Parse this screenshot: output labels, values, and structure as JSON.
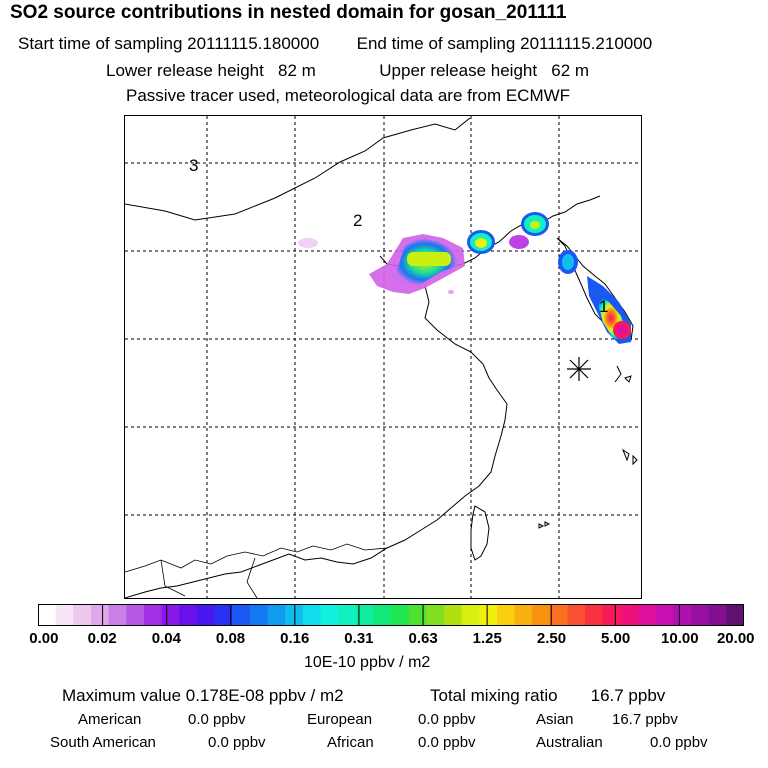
{
  "header": {
    "title": "SO2 source contributions in nested domain for gosan_201111",
    "start_label": "Start time of sampling 20111115.180000",
    "end_label": "End time of sampling 20111115.210000",
    "lower_label": "Lower release height   82 m",
    "upper_label": "Upper release height   62 m",
    "tracer_note": "Passive tracer used, meteorological data are from ECMWF"
  },
  "map": {
    "region_labels": [
      "1",
      "2",
      "3"
    ],
    "station_marker": "asterisk-station-marker"
  },
  "colorbar": {
    "ticks": [
      "0.00",
      "0.02",
      "0.04",
      "0.08",
      "0.16",
      "0.31",
      "0.63",
      "1.25",
      "2.50",
      "5.00",
      "10.00",
      "20.00"
    ],
    "unit": "10E-10 ppbv / m2",
    "colors": [
      "#ffffff",
      "#f6e6f6",
      "#ecc8ec",
      "#e0a8e8",
      "#c880e8",
      "#b65ae6",
      "#a430e6",
      "#8a18e8",
      "#6a10ea",
      "#4818f0",
      "#2a30f4",
      "#1a58f4",
      "#1478f2",
      "#109af0",
      "#10bcee",
      "#10dcec",
      "#10f0e0",
      "#10f0c0",
      "#10ec9c",
      "#10e878",
      "#20e450",
      "#50e030",
      "#80e020",
      "#b0e010",
      "#d8f010",
      "#f0f010",
      "#f8d010",
      "#f8b010",
      "#f89010",
      "#f87020",
      "#f85030",
      "#f83040",
      "#f81a58",
      "#f0107a",
      "#e0109c",
      "#c810b0",
      "#b010b0",
      "#9810a0",
      "#801090",
      "#601070"
    ]
  },
  "stats": {
    "max_value": "Maximum value  0.178E-08 ppbv / m2",
    "total_mixing": "Total mixing ratio       16.7 ppbv"
  },
  "regions": [
    {
      "name": "American",
      "value": "0.0 ppbv"
    },
    {
      "name": "European",
      "value": "0.0 ppbv"
    },
    {
      "name": "Asian",
      "value": "16.7 ppbv"
    },
    {
      "name": "South American",
      "value": "0.0 ppbv"
    },
    {
      "name": "African",
      "value": "0.0 ppbv"
    },
    {
      "name": "Australian",
      "value": "0.0 ppbv"
    }
  ]
}
